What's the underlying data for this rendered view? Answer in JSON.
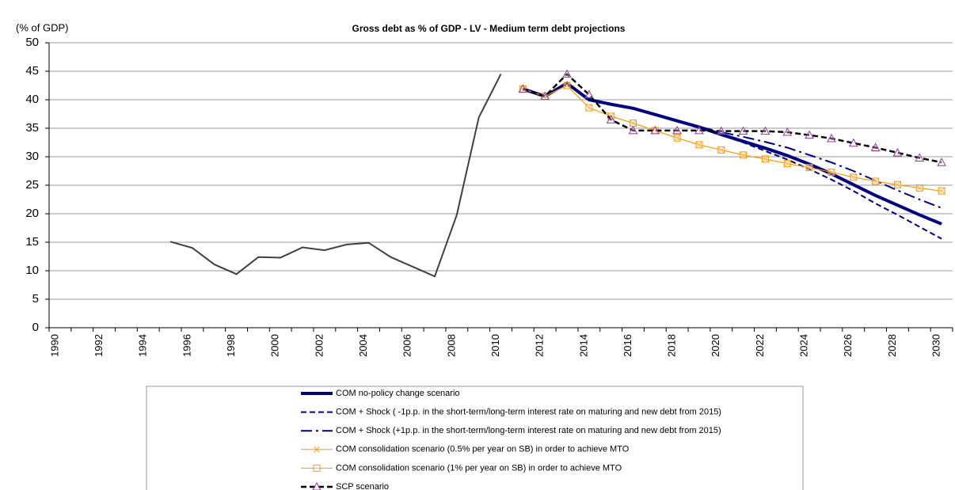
{
  "chart_data": {
    "type": "line",
    "title": "Gross debt as % of GDP - LV - Medium term debt projections",
    "y_axis_label": "(% of GDP)",
    "categories": [
      "1990",
      null,
      "1992",
      null,
      "1994",
      null,
      "1996",
      null,
      "1998",
      null,
      "2000",
      null,
      "2002",
      null,
      "2004",
      null,
      "2006",
      null,
      "2008",
      null,
      "2010",
      null,
      "2012",
      null,
      "2014",
      null,
      "2016",
      null,
      "2018",
      null,
      "2020",
      null,
      "2022",
      null,
      "2024",
      null,
      "2026",
      null,
      "2028",
      null,
      "2030"
    ],
    "ylim": [
      0,
      50
    ],
    "yticks": [
      0,
      5,
      10,
      15,
      20,
      25,
      30,
      35,
      40,
      45,
      50
    ],
    "grid": true,
    "series": [
      {
        "color": "#404040",
        "line_width": 2,
        "linestyle": "solid",
        "values": [
          null,
          null,
          null,
          null,
          null,
          15.1,
          14.0,
          11.1,
          9.4,
          12.4,
          12.3,
          14.1,
          13.6,
          14.6,
          14.9,
          12.4,
          10.7,
          9.0,
          19.8,
          36.9,
          44.5,
          null,
          null,
          null,
          null,
          null,
          null,
          null,
          null,
          null,
          null,
          null,
          null,
          null,
          null,
          null,
          null,
          null,
          null,
          null,
          null
        ]
      },
      {
        "name": "COM no-policy change scenario",
        "color": "#000080",
        "line_width": 4,
        "linestyle": "solid",
        "values": [
          null,
          null,
          null,
          null,
          null,
          null,
          null,
          null,
          null,
          null,
          null,
          null,
          null,
          null,
          null,
          null,
          null,
          null,
          null,
          null,
          null,
          41.9,
          40.6,
          42.9,
          40.0,
          39.2,
          38.5,
          37.4,
          36.3,
          35.2,
          33.9,
          32.7,
          31.5,
          30.2,
          28.7,
          27.0,
          25.1,
          23.2,
          21.5,
          19.8,
          18.2
        ]
      },
      {
        "name": "COM + Shock ( -1p.p. in the short-term/long-term interest rate on maturing and new debt from 2015)",
        "color": "#000080",
        "line_width": 2,
        "linestyle": "dashed",
        "values": [
          null,
          null,
          null,
          null,
          null,
          null,
          null,
          null,
          null,
          null,
          null,
          null,
          null,
          null,
          null,
          null,
          null,
          null,
          null,
          null,
          null,
          41.9,
          40.6,
          42.9,
          40.0,
          39.2,
          38.5,
          37.4,
          36.3,
          35.1,
          33.8,
          32.5,
          31.0,
          29.5,
          27.8,
          26.0,
          24.0,
          21.8,
          19.8,
          17.7,
          15.6
        ]
      },
      {
        "name": "COM + Shock (+1p.p. in the short-term/long-term interest rate on maturing and new debt from 2015)",
        "color": "#000080",
        "line_width": 2,
        "linestyle": "dashdot",
        "values": [
          null,
          null,
          null,
          null,
          null,
          null,
          null,
          null,
          null,
          null,
          null,
          null,
          null,
          null,
          null,
          null,
          null,
          null,
          null,
          null,
          null,
          41.9,
          40.6,
          42.9,
          40.0,
          39.2,
          38.5,
          37.4,
          36.3,
          35.3,
          34.3,
          33.5,
          32.6,
          31.6,
          30.3,
          29.0,
          27.5,
          25.8,
          24.1,
          22.5,
          21.0
        ]
      },
      {
        "name": "COM consolidation scenario (0.5% per year on SB) in order to achieve MTO",
        "color": "#ff9900",
        "line_width": 1,
        "linestyle": "solid",
        "marker": "x",
        "values": [
          null,
          null,
          null,
          null,
          null,
          null,
          null,
          null,
          null,
          null,
          null,
          null,
          null,
          null,
          null,
          null,
          null,
          null,
          null,
          null,
          null,
          41.9,
          40.6,
          42.5,
          38.6,
          37.1,
          35.9,
          34.6,
          33.3,
          32.1,
          31.2,
          30.3,
          29.6,
          28.8,
          28.1,
          27.3,
          26.4,
          25.7,
          25.1,
          24.5,
          24.0
        ]
      },
      {
        "name": "COM consolidation scenario (1% per year on SB) in order to achieve MTO",
        "color": "#ff9900",
        "line_width": 1,
        "linestyle": "solid",
        "marker": "square",
        "values": [
          null,
          null,
          null,
          null,
          null,
          null,
          null,
          null,
          null,
          null,
          null,
          null,
          null,
          null,
          null,
          null,
          null,
          null,
          null,
          null,
          null,
          41.9,
          40.6,
          42.5,
          38.6,
          37.1,
          35.9,
          34.6,
          33.3,
          32.1,
          31.2,
          30.3,
          29.6,
          28.8,
          28.1,
          27.3,
          26.4,
          25.7,
          25.1,
          24.5,
          24.0
        ]
      },
      {
        "name": "SCP scenario",
        "color": "#000000",
        "line_width": 2.5,
        "linestyle": "dashed",
        "marker": "triangle",
        "marker_color": "#993399",
        "values": [
          null,
          null,
          null,
          null,
          null,
          null,
          null,
          null,
          null,
          null,
          null,
          null,
          null,
          null,
          null,
          null,
          null,
          null,
          null,
          null,
          null,
          41.9,
          40.6,
          44.5,
          40.9,
          36.5,
          34.6,
          34.6,
          34.6,
          34.6,
          34.5,
          34.5,
          34.5,
          34.3,
          33.8,
          33.2,
          32.4,
          31.6,
          30.7,
          29.8,
          29.0
        ]
      }
    ]
  }
}
